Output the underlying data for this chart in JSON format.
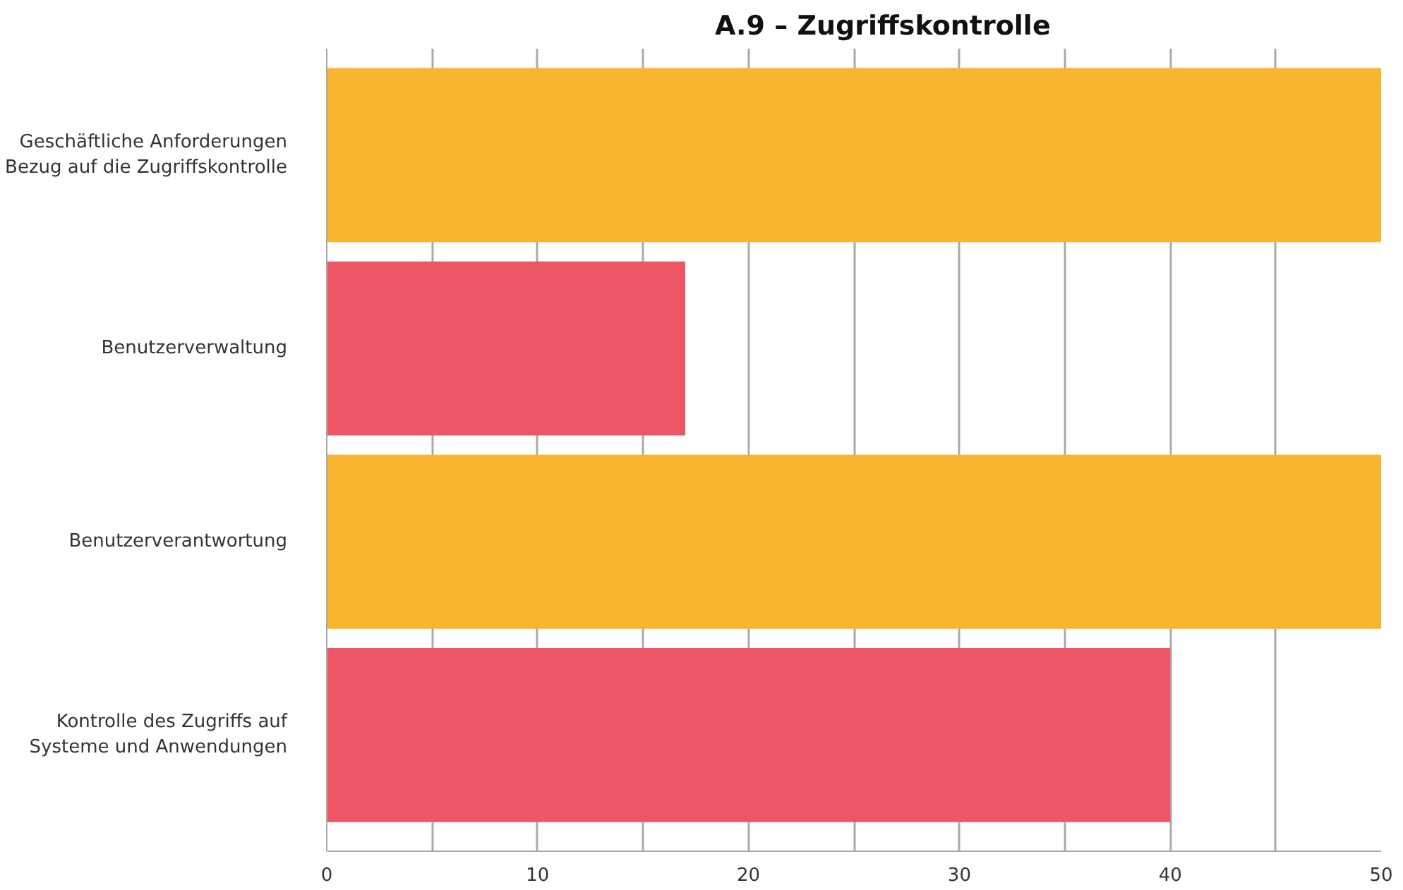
{
  "chart_data": {
    "type": "bar",
    "orientation": "horizontal",
    "title": "A.9 – Zugriffskontrolle",
    "categories": [
      "Geschäftliche Anforderungen\nBezug auf die Zugriffskontrolle",
      "Benutzerverwaltung",
      "Benutzerverantwortung",
      "Kontrolle des Zugriffs auf\nSysteme und Anwendungen"
    ],
    "values": [
      50,
      17,
      50,
      40
    ],
    "colors": [
      "#f9b52f",
      "#ee5565",
      "#f9b52f",
      "#ee5565"
    ],
    "xlim": [
      0,
      50
    ],
    "xticks": [
      0,
      {
        "value": 5,
        "label": null
      },
      10,
      {
        "value": 15,
        "label": null
      },
      20,
      {
        "value": 25,
        "label": null
      },
      30,
      {
        "value": 35,
        "label": null
      },
      40,
      {
        "value": 45,
        "label": null
      },
      50
    ],
    "grid": "x"
  }
}
